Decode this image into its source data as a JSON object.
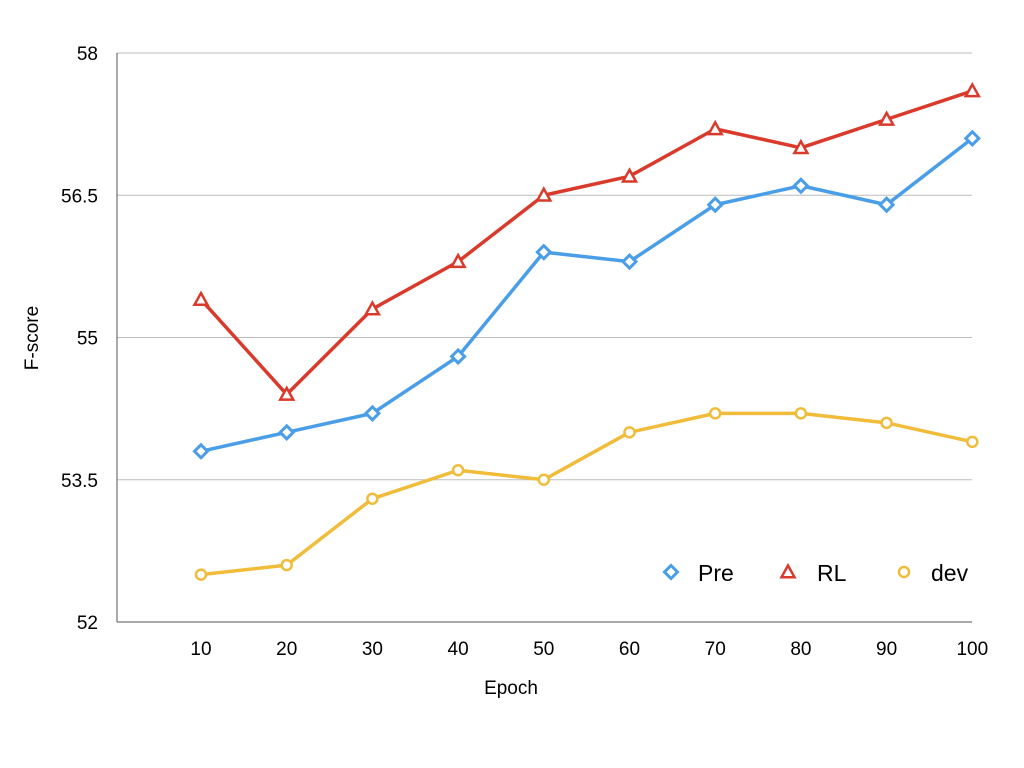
{
  "chart_data": {
    "type": "line",
    "xlabel": "Epoch",
    "ylabel": "F-score",
    "x": [
      10,
      20,
      30,
      40,
      50,
      60,
      70,
      80,
      90,
      100
    ],
    "ylim": [
      52,
      58
    ],
    "yticks": [
      52,
      53.5,
      55,
      56.5,
      58
    ],
    "grid": true,
    "legend_position": "bottom-right",
    "series": [
      {
        "name": "Pre",
        "color": "#4a9ee8",
        "marker": "diamond",
        "values": [
          53.8,
          54.0,
          54.2,
          54.8,
          55.9,
          55.8,
          56.4,
          56.6,
          56.4,
          57.1
        ]
      },
      {
        "name": "RL",
        "color": "#d93a2b",
        "marker": "triangle",
        "values": [
          55.4,
          54.4,
          55.3,
          55.8,
          56.5,
          56.7,
          57.2,
          57.0,
          57.3,
          57.6
        ]
      },
      {
        "name": "dev",
        "color": "#f0bc3a",
        "marker": "circle",
        "values": [
          52.5,
          52.6,
          53.3,
          53.6,
          53.5,
          54.0,
          54.2,
          54.2,
          54.1,
          53.9
        ]
      }
    ]
  }
}
